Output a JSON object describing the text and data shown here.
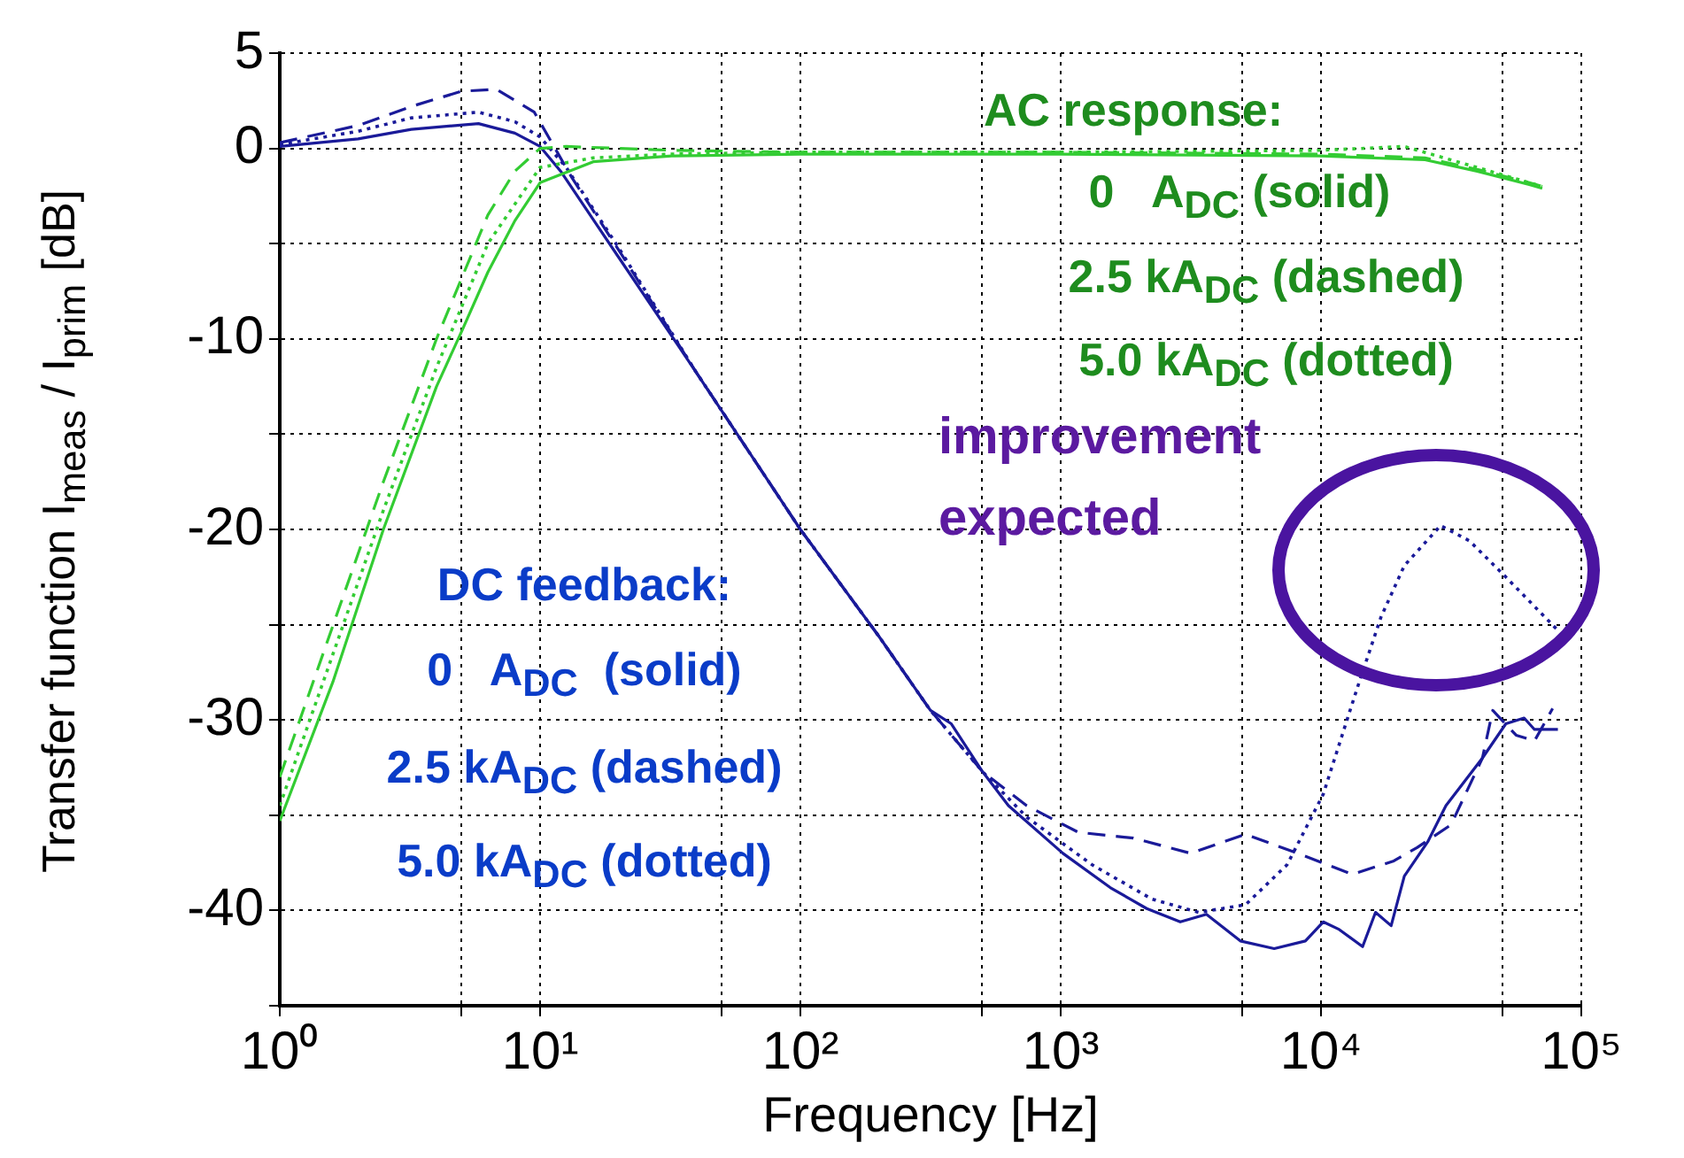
{
  "chart_data": {
    "type": "line",
    "xlabel": "Frequency [Hz]",
    "ylabel": "Transfer function I$_{meas}$ / I$_{prim}$ [dB]",
    "annotations": [
      "AC response:",
      "0   A$_{DC}$ (solid)",
      "2.5 kA$_{DC}$ (dashed)",
      "5.0 kA$_{DC}$ (dotted)",
      "improvement expected",
      "DC feedback:",
      "0   A$_{DC}$  (solid)",
      "2.5 kA$_{DC}$ (dashed)",
      "5.0 kA$_{DC}$ (dotted)"
    ],
    "log": "x",
    "xlim": [
      1,
      100000
    ],
    "xticks": [
      {
        "value": 1,
        "label": "10⁰"
      },
      {
        "value": 5,
        "label": null
      },
      {
        "value": 10,
        "label": "10¹"
      },
      {
        "value": 50,
        "label": null
      },
      {
        "value": 100,
        "label": "10²"
      },
      {
        "value": 500,
        "label": null
      },
      {
        "value": 1000,
        "label": "10³"
      },
      {
        "value": 5000,
        "label": null
      },
      {
        "value": 10000,
        "label": "10⁴"
      },
      {
        "value": 50000,
        "label": null
      },
      {
        "value": 100000,
        "label": "10⁵"
      }
    ],
    "ylim": [
      -45,
      5
    ],
    "yticks": [
      {
        "value": -45,
        "label": null
      },
      -40,
      {
        "value": -35,
        "label": null
      },
      -30,
      {
        "value": -25,
        "label": null
      },
      -20,
      {
        "value": -15,
        "label": null
      },
      -10,
      {
        "value": -5,
        "label": null
      },
      0,
      5
    ],
    "grid": true,
    "legend": false,
    "marker": "none",
    "series": [
      {
        "color": "#33cc33",
        "line_style": "solid",
        "x": [
          1,
          1.6,
          2.5,
          4,
          5,
          6.3,
          8,
          10,
          16,
          32,
          100,
          1000,
          10000,
          25100,
          39800,
          63100,
          70800
        ],
        "values": [
          -35.3,
          -28,
          -20,
          -12.5,
          -9.6,
          -6.5,
          -3.8,
          -1.8,
          -0.7,
          -0.4,
          -0.3,
          -0.3,
          -0.4,
          -0.6,
          -1.2,
          -1.9,
          -2.1
        ]
      },
      {
        "color": "#33cc33",
        "line_style": "dashed",
        "x": [
          1,
          2.5,
          4,
          6.3,
          8,
          10,
          12.6,
          32,
          100,
          1000,
          10000,
          25100,
          39800,
          63100,
          70800
        ],
        "values": [
          -33,
          -17.5,
          -10,
          -3.5,
          -1.2,
          0,
          0.1,
          -0.1,
          -0.2,
          -0.2,
          -0.3,
          -0.5,
          -1.1,
          -1.8,
          -2.0
        ]
      },
      {
        "color": "#33cc33",
        "line_style": "dotted",
        "x": [
          1,
          2.5,
          4,
          6.3,
          10,
          16,
          32,
          100,
          1000,
          10000,
          20900,
          39800,
          63100,
          70800
        ],
        "values": [
          -34.5,
          -19,
          -11.5,
          -5,
          -1,
          -0.5,
          -0.3,
          -0.2,
          -0.2,
          -0.1,
          0.1,
          -1.0,
          -1.8,
          -2.0
        ]
      },
      {
        "color": "#1a1a99",
        "line_style": "solid",
        "x": [
          1,
          2,
          3.2,
          5.8,
          8,
          10,
          12,
          20,
          40,
          100,
          200,
          316,
          380,
          500,
          630,
          1020,
          1550,
          2140,
          2880,
          3630,
          4900,
          6610,
          8710,
          10200,
          11750,
          14450,
          16200,
          18600,
          20900,
          25700,
          30200,
          41700,
          51300,
          60300,
          66100,
          81300
        ],
        "values": [
          0.1,
          0.5,
          1.0,
          1.3,
          0.8,
          0.1,
          -1.2,
          -5.7,
          -11.8,
          -20,
          -25.6,
          -29.5,
          -30.2,
          -32.7,
          -34.5,
          -37,
          -38.8,
          -39.9,
          -40.6,
          -40.2,
          -41.6,
          -42.0,
          -41.6,
          -40.6,
          -41.0,
          -41.9,
          -40.1,
          -40.8,
          -38.2,
          -36.4,
          -34.5,
          -32.0,
          -30.2,
          -29.9,
          -30.5,
          -30.5
        ]
      },
      {
        "color": "#1a1a99",
        "line_style": "dashed",
        "x": [
          1,
          2,
          3.2,
          5,
          6.8,
          9.5,
          13.2,
          20.4,
          40,
          100,
          200,
          316,
          500,
          740,
          1170,
          1900,
          3160,
          5130,
          8130,
          13200,
          19050,
          23400,
          31600,
          41700,
          45700,
          56200,
          66100,
          77600
        ],
        "values": [
          0.3,
          1.2,
          2.2,
          3.0,
          3.1,
          1.9,
          -1.5,
          -5.5,
          -11.8,
          -20,
          -25.6,
          -29.5,
          -32.7,
          -34.5,
          -35.9,
          -36.2,
          -37,
          -36,
          -37,
          -38.1,
          -37.4,
          -36.7,
          -35.5,
          -32,
          -29.5,
          -30.8,
          -31.1,
          -29.4
        ]
      },
      {
        "color": "#1a1a99",
        "line_style": "dotted",
        "x": [
          1,
          2,
          3.2,
          5.8,
          8,
          10,
          12.6,
          20,
          40,
          100,
          200,
          316,
          500,
          740,
          1320,
          2240,
          3390,
          5130,
          7410,
          10200,
          13800,
          17000,
          20900,
          28800,
          37200,
          51300,
          81300
        ],
        "values": [
          0.2,
          0.9,
          1.6,
          1.9,
          1.4,
          0.6,
          -1.0,
          -5.2,
          -11.8,
          -20,
          -25.6,
          -29.5,
          -32.7,
          -35.1,
          -37.6,
          -39.4,
          -40.1,
          -39.7,
          -37.6,
          -33.9,
          -28.3,
          -24.6,
          -21.9,
          -19.8,
          -20.6,
          -22.5,
          -25.3
        ]
      }
    ]
  }
}
